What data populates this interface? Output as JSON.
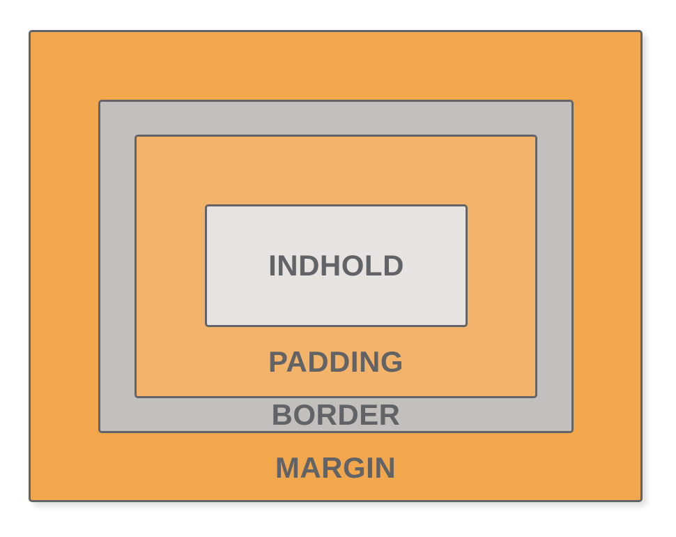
{
  "labels": {
    "content": "INDHOLD",
    "padding": "PADDING",
    "border": "BORDER",
    "margin": "MARGIN"
  },
  "colors": {
    "margin_fill": "#f2a74c",
    "border_fill": "#c2bfbd",
    "padding_fill": "#f3b36a",
    "content_fill": "#e6e3e1",
    "outline": "#616366",
    "text": "#616366"
  }
}
